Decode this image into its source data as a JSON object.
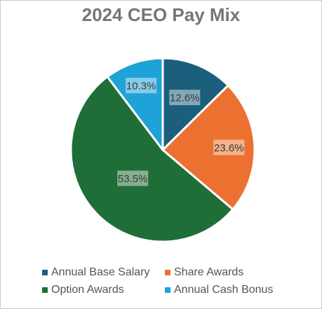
{
  "chart_data": {
    "type": "pie",
    "title": "2024 CEO Pay Mix",
    "slices": [
      {
        "label": "Annual Base Salary",
        "value": 12.6,
        "display": "12.6%",
        "color": "#1c5f7d"
      },
      {
        "label": "Share Awards",
        "value": 23.6,
        "display": "23.6%",
        "color": "#ec7131"
      },
      {
        "label": "Option Awards",
        "value": 53.5,
        "display": "53.5%",
        "color": "#1f6e38"
      },
      {
        "label": "Annual Cash Bonus",
        "value": 10.3,
        "display": "10.3%",
        "color": "#1fa2d8"
      }
    ],
    "legend_position": "bottom",
    "start": "top, clockwise"
  }
}
